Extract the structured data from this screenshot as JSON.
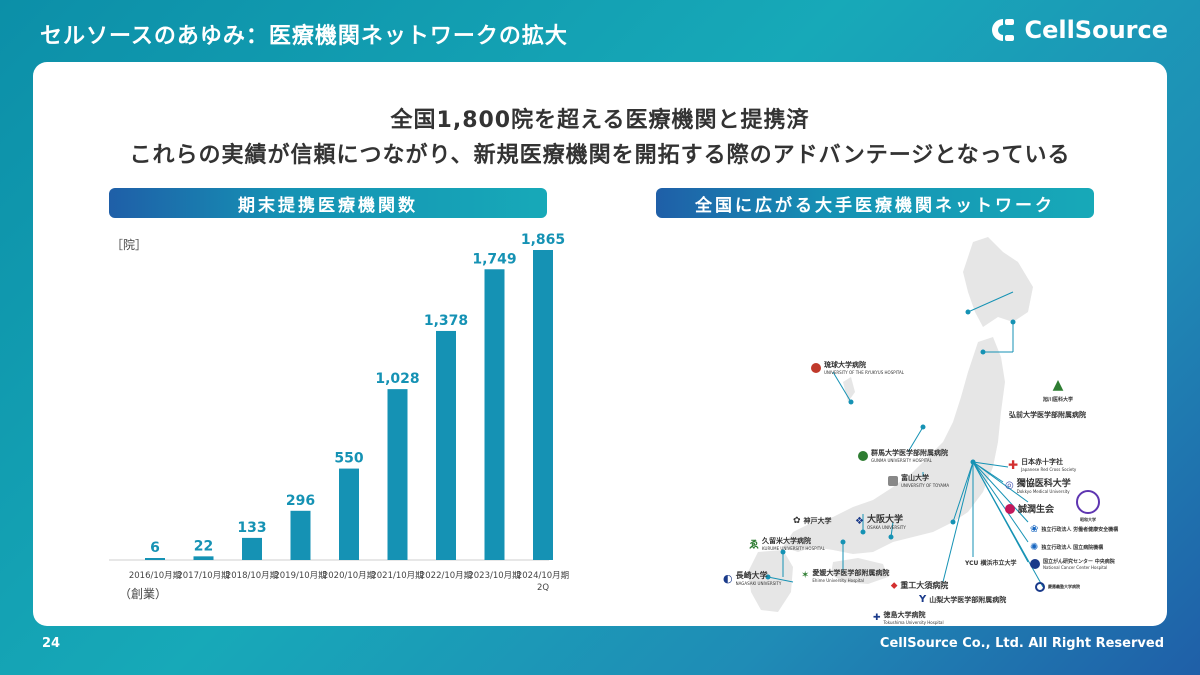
{
  "header": {
    "title": "セルソースのあゆみ：医療機関ネットワークの拡大",
    "logo_text": "CellSource"
  },
  "headline": {
    "line1": "全国1,800院を超える医療機関と提携済",
    "line2": "これらの実績が信頼につながり、新規医療機関を開拓する際のアドバンテージとなっている"
  },
  "left_panel": {
    "title": "期末提携医療機関数",
    "unit": "［院］",
    "since": "（創業）"
  },
  "right_panel": {
    "title": "全国に広がる大手医療機関ネットワーク"
  },
  "chart_data": {
    "type": "bar",
    "categories": [
      "2016/10月期",
      "2017/10月期",
      "2018/10月期",
      "2019/10月期",
      "2020/10月期",
      "2021/10月期",
      "2022/10月期",
      "2023/10月期",
      "2024/10月期"
    ],
    "category_sublabels": [
      "",
      "",
      "",
      "",
      "",
      "",
      "",
      "",
      "2Q"
    ],
    "values": [
      6,
      22,
      133,
      296,
      550,
      1028,
      1378,
      1749,
      1865
    ],
    "value_labels": [
      "6",
      "22",
      "133",
      "296",
      "550",
      "1,028",
      "1,378",
      "1,749",
      "1,865"
    ],
    "ylabel": "［院］",
    "ylim": [
      0,
      1865
    ],
    "bar_color": "#1592b4",
    "grid": false
  },
  "institutions": [
    {
      "name": "琉球大学病院",
      "sub": "UNIVERSITY OF THE RYUKYUS HOSPITAL",
      "color": "#c0392b"
    },
    {
      "name": "旭川医科大学",
      "sub": "",
      "color": "#2e7d32"
    },
    {
      "name": "弘前大学医学部附属病院",
      "sub": "",
      "color": "#555555"
    },
    {
      "name": "群馬大学医学部附属病院",
      "sub": "GUNMA UNIVERSITY HOSPITAL",
      "color": "#2e7d32"
    },
    {
      "name": "富山大学",
      "sub": "UNIVERSITY OF TOYAMA",
      "color": "#555555"
    },
    {
      "name": "日本赤十字社",
      "sub": "Japanese Red Cross Society",
      "color": "#d32f2f"
    },
    {
      "name": "獨協医科大学",
      "sub": "Dokkyo Medical University",
      "color": "#3949ab"
    },
    {
      "name": "昭和大学",
      "sub": "",
      "color": "#5e35b1"
    },
    {
      "name": "誠潤生会",
      "sub": "",
      "color": "#c2185b"
    },
    {
      "name": "神戸大学",
      "sub": "",
      "color": "#333333"
    },
    {
      "name": "大阪大学",
      "sub": "OSAKA UNIVERSITY",
      "color": "#1a3a8a"
    },
    {
      "name": "独立行政法人 労働者健康安全機構",
      "sub": "",
      "color": "#1565c0"
    },
    {
      "name": "独立行政法人 国立病院機構",
      "sub": "",
      "color": "#1565c0"
    },
    {
      "name": "久留米大学病院",
      "sub": "KURUME UNIVERSITY HOSPITAL",
      "color": "#2e7d32"
    },
    {
      "name": "長崎大学",
      "sub": "NAGASAKI UNIVERSITY",
      "color": "#1a3a8a"
    },
    {
      "name": "YCU 横浜市立大学",
      "sub": "",
      "color": "#333333"
    },
    {
      "name": "国立がん研究センター 中央病院",
      "sub": "National Cancer Center Hospital",
      "color": "#1a3a8a"
    },
    {
      "name": "重工大須病院",
      "sub": "",
      "color": "#333333"
    },
    {
      "name": "山梨大学医学部附属病院",
      "sub": "",
      "color": "#1a3a8a"
    },
    {
      "name": "慶應義塾大学病院",
      "sub": "",
      "color": "#1a3a8a"
    },
    {
      "name": "徳島大学病院",
      "sub": "Tokushima University Hospital",
      "color": "#1a3a8a"
    },
    {
      "name": "愛媛大学医学部附属病院",
      "sub": "Ehime University Hospital",
      "color": "#2e7d32"
    }
  ],
  "footer": {
    "page": "24",
    "copyright": "CellSource Co., Ltd. All Right Reserved"
  }
}
